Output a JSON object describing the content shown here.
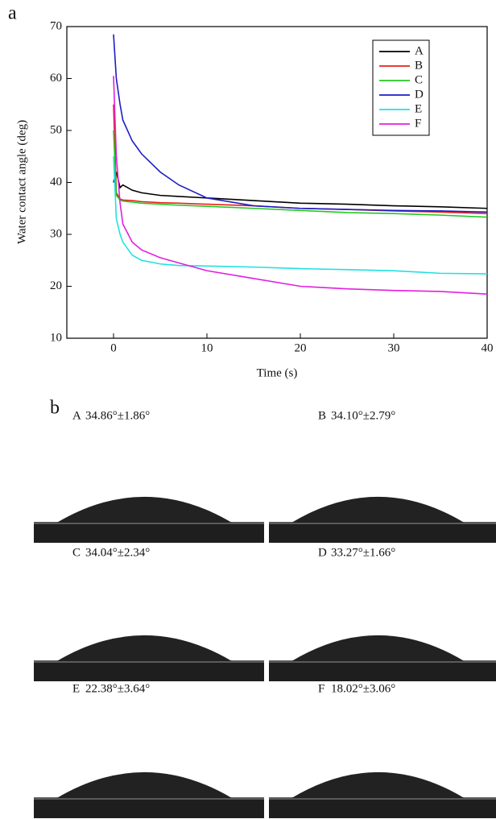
{
  "panel_labels": [
    "a",
    "b"
  ],
  "chart_data": {
    "type": "line",
    "xlabel": "Time (s)",
    "ylabel": "Water contact angle (deg)",
    "x": [
      0,
      0.3,
      0.7,
      1,
      2,
      3,
      5,
      7,
      10,
      15,
      20,
      25,
      30,
      35,
      40
    ],
    "series": [
      {
        "name": "A",
        "color": "#000000",
        "values": [
          40,
          42,
          39,
          39.5,
          38.5,
          38,
          37.5,
          37.3,
          37,
          36.5,
          36,
          35.8,
          35.5,
          35.3,
          35
        ]
      },
      {
        "name": "B",
        "color": "#e8201a",
        "values": [
          55,
          38,
          36.8,
          36.6,
          36.5,
          36.3,
          36.1,
          36,
          35.8,
          35.5,
          35,
          34.8,
          34.5,
          34.3,
          34
        ]
      },
      {
        "name": "C",
        "color": "#22c822",
        "values": [
          50,
          37.5,
          36.6,
          36.4,
          36.2,
          36,
          35.8,
          35.6,
          35.4,
          35,
          34.6,
          34.2,
          34,
          33.7,
          33.3
        ]
      },
      {
        "name": "D",
        "color": "#1c1cc8",
        "values": [
          68.5,
          60,
          55,
          52,
          48,
          45.5,
          42,
          39.5,
          37,
          35.5,
          35,
          34.8,
          34.6,
          34.5,
          34.3
        ]
      },
      {
        "name": "E",
        "color": "#22e0e0",
        "values": [
          45,
          33,
          30,
          28.5,
          26,
          25,
          24.3,
          24,
          23.9,
          23.7,
          23.4,
          23.2,
          23,
          22.5,
          22.4
        ]
      },
      {
        "name": "F",
        "color": "#e020e0",
        "values": [
          60.5,
          45,
          36,
          32,
          28.5,
          27,
          25.5,
          24.5,
          23,
          21.5,
          20,
          19.5,
          19.2,
          19,
          18.5
        ]
      }
    ],
    "xlim": [
      -5,
      40
    ],
    "xticks": [
      0,
      10,
      20,
      30,
      40
    ],
    "ylim": [
      10,
      70
    ],
    "yticks": [
      10,
      20,
      30,
      40,
      50,
      60,
      70
    ],
    "legend": "upper right"
  },
  "images": [
    {
      "label": "A",
      "angle": "34.86°±1.86°"
    },
    {
      "label": "B",
      "angle": "34.10°±2.79°"
    },
    {
      "label": "C",
      "angle": "34.04°±2.34°"
    },
    {
      "label": "D",
      "angle": "33.27°±1.66°"
    },
    {
      "label": "E",
      "angle": "22.38°±3.64°"
    },
    {
      "label": "F",
      "angle": "18.02°±3.06°"
    }
  ]
}
